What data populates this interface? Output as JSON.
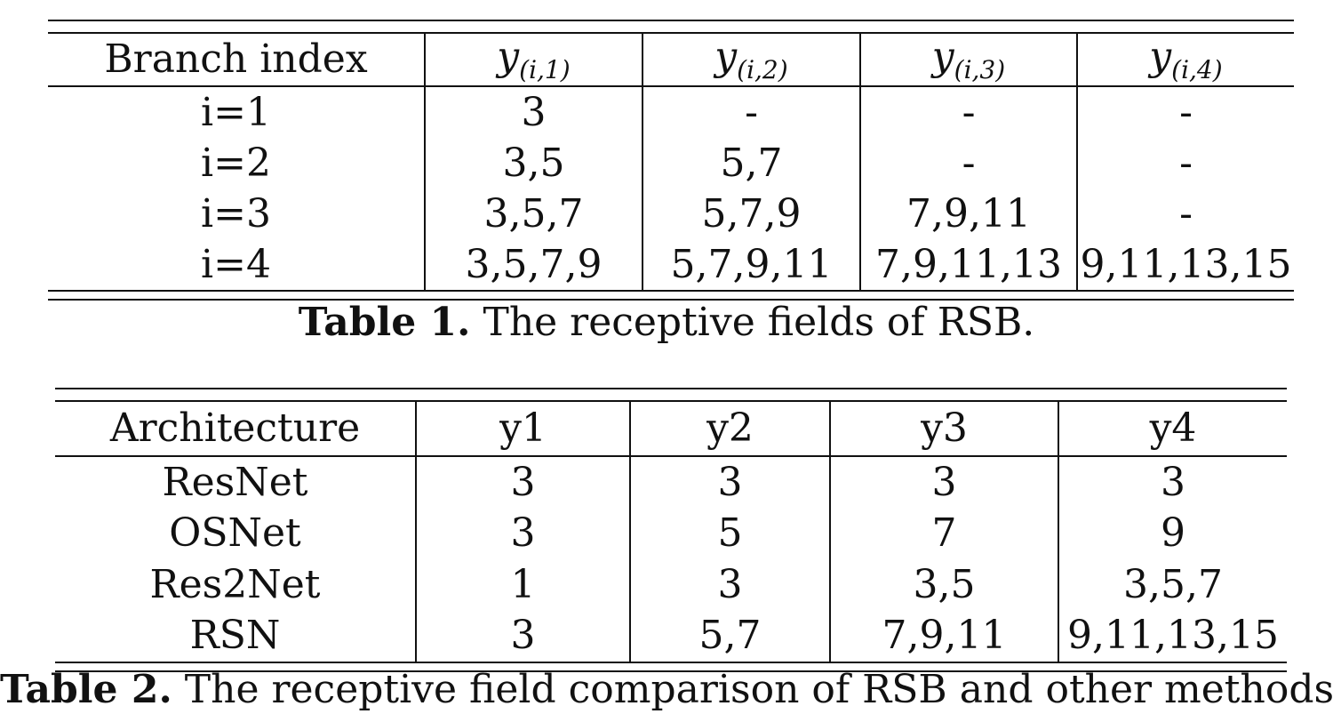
{
  "table1": {
    "caption_label": "Table 1.",
    "caption_text": " The receptive fields of RSB.",
    "columns": [
      {
        "label": "Branch index",
        "math": false
      },
      {
        "base": "y",
        "sub": "(i,1)",
        "math": true
      },
      {
        "base": "y",
        "sub": "(i,2)",
        "math": true
      },
      {
        "base": "y",
        "sub": "(i,3)",
        "math": true
      },
      {
        "base": "y",
        "sub": "(i,4)",
        "math": true
      }
    ],
    "rows": [
      [
        "i=1",
        "3",
        "-",
        "-",
        "-"
      ],
      [
        "i=2",
        "3,5",
        "5,7",
        "-",
        "-"
      ],
      [
        "i=3",
        "3,5,7",
        "5,7,9",
        "7,9,11",
        "-"
      ],
      [
        "i=4",
        "3,5,7,9",
        "5,7,9,11",
        "7,9,11,13",
        "9,11,13,15"
      ]
    ]
  },
  "table2": {
    "caption_label": "Table 2.",
    "caption_text": " The receptive field comparison of RSB and other methods.",
    "columns": [
      "Architecture",
      "y1",
      "y2",
      "y3",
      "y4"
    ],
    "rows": [
      [
        "ResNet",
        "3",
        "3",
        "3",
        "3"
      ],
      [
        "OSNet",
        "3",
        "5",
        "7",
        "9"
      ],
      [
        "Res2Net",
        "1",
        "3",
        "3,5",
        "3,5,7"
      ],
      [
        "RSN",
        "3",
        "5,7",
        "7,9,11",
        "9,11,13,15"
      ]
    ]
  }
}
